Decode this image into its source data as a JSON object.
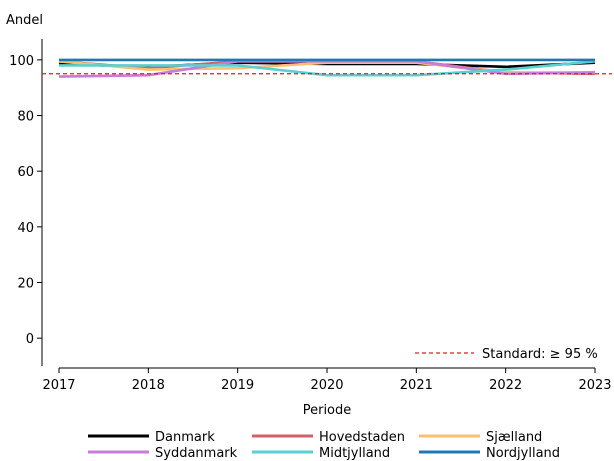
{
  "chart_data": {
    "type": "line",
    "ylabel": "Andel",
    "xlabel": "Periode",
    "x": [
      2017,
      2018,
      2019,
      2020,
      2021,
      2022,
      2023
    ],
    "xlim": [
      2017,
      2023
    ],
    "ylim": [
      -10,
      107.5
    ],
    "yticks": [
      0,
      20,
      40,
      60,
      80,
      100
    ],
    "grid": false,
    "series": [
      {
        "name": "Danmark",
        "color": "#000000",
        "values": [
          98.5,
          97.5,
          99.0,
          98.5,
          98.5,
          97.5,
          99.0
        ]
      },
      {
        "name": "Hovedstaden",
        "color": "#d0616b",
        "values": [
          99.5,
          97.0,
          99.5,
          99.5,
          99.5,
          95.5,
          95.0
        ]
      },
      {
        "name": "Sjælland",
        "color": "#fdbf6f",
        "values": [
          99.5,
          96.5,
          97.0,
          99.0,
          99.0,
          95.5,
          95.5
        ]
      },
      {
        "name": "Syddanmark",
        "color": "#c77cdb",
        "values": [
          94.0,
          94.5,
          99.5,
          99.5,
          99.5,
          95.0,
          95.5
        ]
      },
      {
        "name": "Midtjylland",
        "color": "#5bd0d0",
        "values": [
          98.0,
          98.0,
          98.0,
          94.5,
          94.5,
          96.5,
          99.5
        ]
      },
      {
        "name": "Nordjylland",
        "color": "#1f78b4",
        "values": [
          100.0,
          100.0,
          100.0,
          100.0,
          100.0,
          100.0,
          100.0
        ]
      }
    ],
    "reference_line": {
      "value": 95,
      "color": "#e31a1c",
      "label": "Standard: ≥ 95 %"
    },
    "legend": {
      "position": "bottom",
      "columns": 3
    }
  }
}
